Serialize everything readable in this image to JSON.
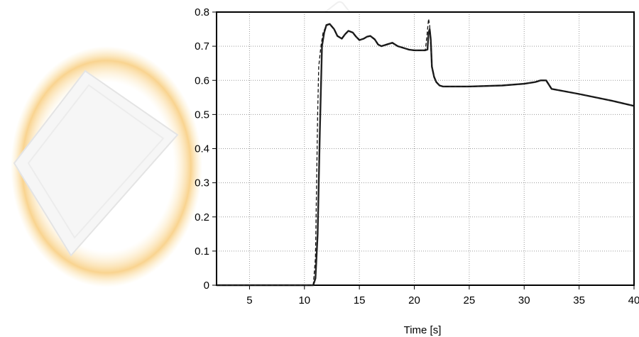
{
  "colors": {
    "series_solid": "#222222",
    "series_dashed": "#111111",
    "plot_border": "#000000",
    "watermark_orange": "#f5b021",
    "watermark_grey": "#d6d6d6"
  },
  "chart_data": {
    "type": "line",
    "title": "",
    "xlabel": "Time [s]",
    "ylabel": "",
    "xlim": [
      2,
      40
    ],
    "ylim": [
      0,
      0.8
    ],
    "xticks": [
      5,
      10,
      15,
      20,
      25,
      30,
      35,
      40
    ],
    "yticks": [
      0,
      0.1,
      0.2,
      0.3,
      0.4,
      0.5,
      0.6,
      0.7,
      0.8
    ],
    "xtick_labels": [
      "5",
      "10",
      "15",
      "20",
      "25",
      "30",
      "35",
      "40"
    ],
    "ytick_labels": [
      "0",
      "0.1",
      "0.2",
      "0.3",
      "0.4",
      "0.5",
      "0.6",
      "0.7",
      "0.8"
    ],
    "grid": true,
    "legend": "none",
    "series": [
      {
        "style": "solid",
        "x": [
          2,
          5,
          10,
          10.8,
          11.0,
          11.2,
          11.4,
          11.6,
          11.8,
          12.0,
          12.3,
          12.7,
          13.0,
          13.4,
          13.7,
          14.0,
          14.4,
          14.7,
          15.0,
          15.4,
          15.7,
          16.0,
          16.4,
          16.7,
          17.0,
          17.5,
          18.0,
          18.5,
          19.0,
          19.5,
          20.0,
          20.5,
          21.0,
          21.2,
          21.3,
          21.4,
          21.5,
          21.6,
          21.8,
          22.0,
          22.3,
          22.6,
          25.0,
          28.0,
          30.0,
          31.0,
          31.5,
          32.0,
          32.5,
          35.0,
          38.0,
          40.0
        ],
        "y": [
          0,
          0,
          0,
          0,
          0.02,
          0.15,
          0.45,
          0.7,
          0.74,
          0.762,
          0.765,
          0.75,
          0.73,
          0.722,
          0.735,
          0.745,
          0.74,
          0.728,
          0.718,
          0.722,
          0.728,
          0.73,
          0.72,
          0.705,
          0.7,
          0.705,
          0.71,
          0.7,
          0.695,
          0.69,
          0.688,
          0.688,
          0.688,
          0.69,
          0.74,
          0.75,
          0.72,
          0.64,
          0.61,
          0.595,
          0.585,
          0.582,
          0.582,
          0.585,
          0.59,
          0.595,
          0.6,
          0.6,
          0.575,
          0.56,
          0.54,
          0.525
        ]
      },
      {
        "style": "dashed",
        "x": [
          2,
          5,
          10,
          10.8,
          11.0,
          11.2,
          11.3,
          11.5,
          11.7,
          12.0,
          12.3,
          12.7,
          13.0,
          13.4,
          13.7,
          14.0,
          14.4,
          14.7,
          15.0,
          15.4,
          15.7,
          16.0,
          16.4,
          16.7,
          17.0,
          17.5,
          18.0,
          18.5,
          19.0,
          19.5,
          20.0,
          20.5,
          21.0,
          21.15,
          21.3,
          21.4,
          21.5,
          21.6,
          21.8,
          22.0,
          22.3,
          22.6,
          25.0,
          28.0,
          30.0,
          31.0,
          31.5,
          32.0,
          32.5,
          35.0,
          38.0,
          40.0
        ],
        "y": [
          0,
          0,
          0,
          0,
          0.08,
          0.5,
          0.64,
          0.7,
          0.74,
          0.76,
          0.765,
          0.75,
          0.73,
          0.722,
          0.735,
          0.745,
          0.74,
          0.728,
          0.718,
          0.722,
          0.728,
          0.73,
          0.72,
          0.705,
          0.7,
          0.705,
          0.71,
          0.7,
          0.695,
          0.69,
          0.688,
          0.688,
          0.688,
          0.73,
          0.78,
          0.76,
          0.7,
          0.64,
          0.61,
          0.595,
          0.585,
          0.582,
          0.582,
          0.585,
          0.59,
          0.595,
          0.6,
          0.6,
          0.575,
          0.56,
          0.54,
          0.525
        ]
      }
    ]
  }
}
